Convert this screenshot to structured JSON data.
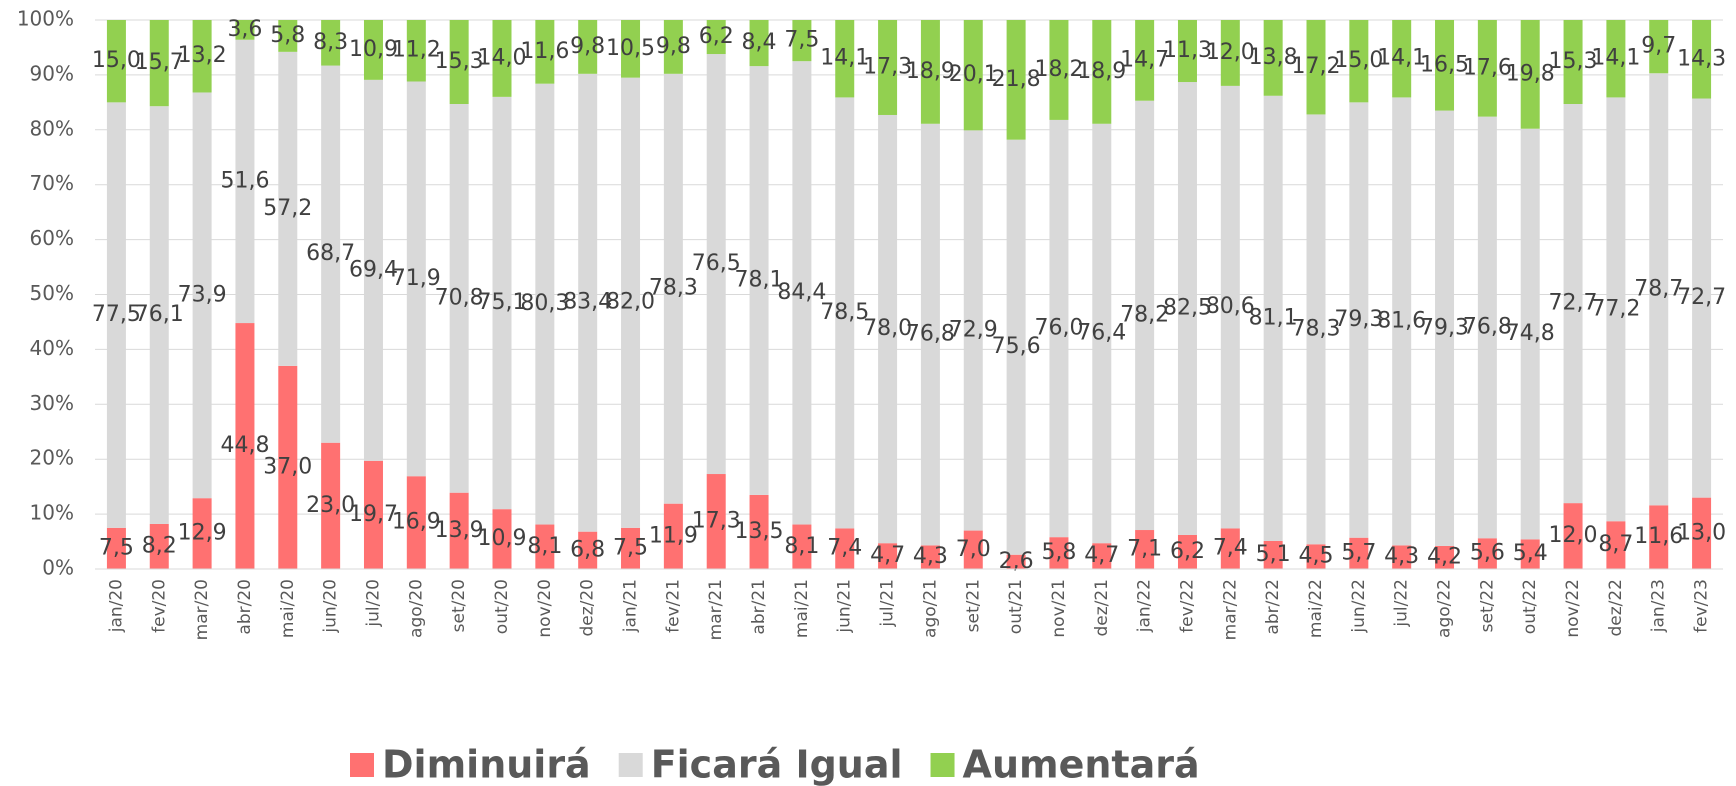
{
  "chart_data": {
    "type": "stacked_bar",
    "categories": [
      "jan/20",
      "fev/20",
      "mar/20",
      "abr/20",
      "mai/20",
      "jun/20",
      "jul/20",
      "ago/20",
      "set/20",
      "out/20",
      "nov/20",
      "dez/20",
      "jan/21",
      "fev/21",
      "mar/21",
      "abr/21",
      "mai/21",
      "jun/21",
      "jul/21",
      "ago/21",
      "set/21",
      "out/21",
      "nov/21",
      "dez/21",
      "jan/22",
      "fev/22",
      "mar/22",
      "abr/22",
      "mai/22",
      "jun/22",
      "jul/22",
      "ago/22",
      "set/22",
      "out/22",
      "nov/22",
      "dez/22",
      "jan/23",
      "fev/23"
    ],
    "series": [
      {
        "name": "Diminuirá",
        "color": "#ff7171",
        "values": [
          7.5,
          8.2,
          12.9,
          44.8,
          37.0,
          23.0,
          19.7,
          16.9,
          13.9,
          10.9,
          8.1,
          6.8,
          7.5,
          11.9,
          17.3,
          13.5,
          8.1,
          7.4,
          4.7,
          4.3,
          7.0,
          2.6,
          5.8,
          4.7,
          7.1,
          6.2,
          7.4,
          5.1,
          4.5,
          5.7,
          4.3,
          4.2,
          5.6,
          5.4,
          12.0,
          8.7,
          11.6,
          13.0
        ],
        "value_labels": [
          "7,5",
          "8,2",
          "12,9",
          "44,8",
          "37,0",
          "23,0",
          "19,7",
          "16,9",
          "13,9",
          "10,9",
          "8,1",
          "6,8",
          "7,5",
          "11,9",
          "17,3",
          "13,5",
          "8,1",
          "7,4",
          "4,7",
          "4,3",
          "7,0",
          "2,6",
          "5,8",
          "4,7",
          "7,1",
          "6,2",
          "7,4",
          "5,1",
          "4,5",
          "5,7",
          "4,3",
          "4,2",
          "5,6",
          "5,4",
          "12,0",
          "8,7",
          "11,6",
          "13,0"
        ]
      },
      {
        "name": "Ficará Igual",
        "color": "#d9d9d9",
        "values": [
          77.5,
          76.1,
          73.9,
          51.6,
          57.2,
          68.7,
          69.4,
          71.9,
          70.8,
          75.1,
          80.3,
          83.4,
          82.0,
          78.3,
          76.5,
          78.1,
          84.4,
          78.5,
          78.0,
          76.8,
          72.9,
          75.6,
          76.0,
          76.4,
          78.2,
          82.5,
          80.6,
          81.1,
          78.3,
          79.3,
          81.6,
          79.3,
          76.8,
          74.8,
          72.7,
          77.2,
          78.7,
          72.7
        ],
        "value_labels": [
          "77,5",
          "76,1",
          "73,9",
          "51,6",
          "57,2",
          "68,7",
          "69,4",
          "71,9",
          "70,8",
          "75,1",
          "80,3",
          "83,4",
          "82,0",
          "78,3",
          "76,5",
          "78,1",
          "84,4",
          "78,5",
          "78,0",
          "76,8",
          "72,9",
          "75,6",
          "76,0",
          "76,4",
          "78,2",
          "82,5",
          "80,6",
          "81,1",
          "78,3",
          "79,3",
          "81,6",
          "79,3",
          "76,8",
          "74,8",
          "72,7",
          "77,2",
          "78,7",
          "72,7"
        ]
      },
      {
        "name": "Aumentará",
        "color": "#92d050",
        "values": [
          15.0,
          15.7,
          13.2,
          3.6,
          5.8,
          8.3,
          10.9,
          11.2,
          15.3,
          14.0,
          11.6,
          9.8,
          10.5,
          9.8,
          6.2,
          8.4,
          7.5,
          14.1,
          17.3,
          18.9,
          20.1,
          21.8,
          18.2,
          18.9,
          14.7,
          11.3,
          12.0,
          13.8,
          17.2,
          15.0,
          14.1,
          16.5,
          17.6,
          19.8,
          15.3,
          14.1,
          9.7,
          14.3
        ],
        "value_labels": [
          "15,0",
          "15,7",
          "13,2",
          "3,6",
          "5,8",
          "8,3",
          "10,9",
          "11,2",
          "15,3",
          "14,0",
          "11,6",
          "9,8",
          "10,5",
          "9,8",
          "6,2",
          "8,4",
          "7,5",
          "14,1",
          "17,3",
          "18,9",
          "20,1",
          "21,8",
          "18,2",
          "18,9",
          "14,7",
          "11,3",
          "12,0",
          "13,8",
          "17,2",
          "15,0",
          "14,1",
          "16,5",
          "17,6",
          "19,8",
          "15,3",
          "14,1",
          "9,7",
          "14,3"
        ]
      }
    ],
    "ylim": [
      0,
      100
    ],
    "yticks": [
      {
        "value": 0,
        "label": "0%"
      },
      {
        "value": 10,
        "label": "10%"
      },
      {
        "value": 20,
        "label": "20%"
      },
      {
        "value": 30,
        "label": "30%"
      },
      {
        "value": 40,
        "label": "40%"
      },
      {
        "value": 50,
        "label": "50%"
      },
      {
        "value": 60,
        "label": "60%"
      },
      {
        "value": 70,
        "label": "70%"
      },
      {
        "value": 80,
        "label": "80%"
      },
      {
        "value": 90,
        "label": "90%"
      },
      {
        "value": 100,
        "label": "100%"
      }
    ],
    "grid": true,
    "legend": "bottom"
  }
}
